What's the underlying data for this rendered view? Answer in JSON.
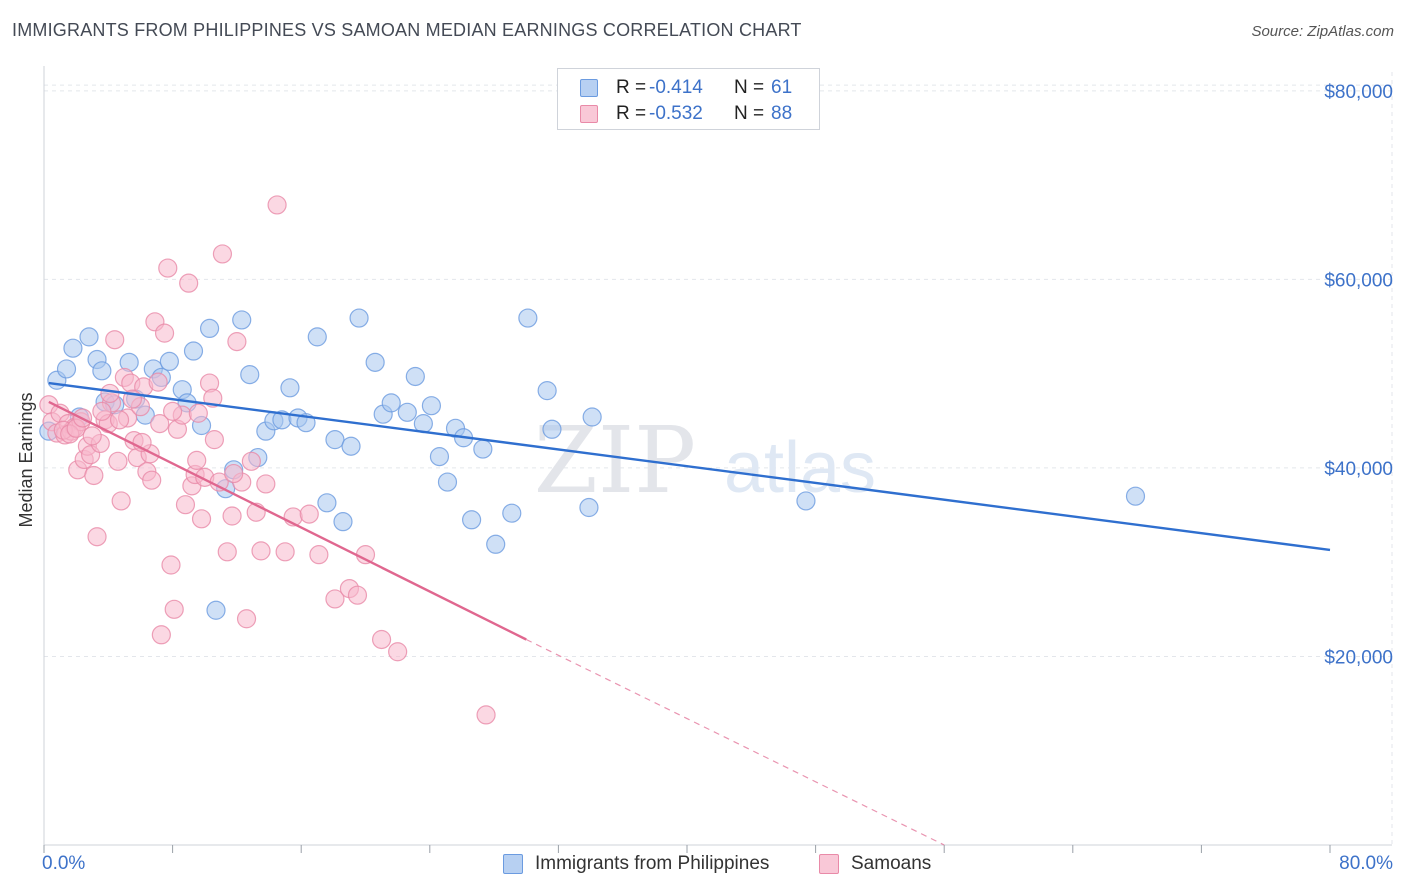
{
  "title": "IMMIGRANTS FROM PHILIPPINES VS SAMOAN MEDIAN EARNINGS CORRELATION CHART",
  "source": "Source: ZipAtlas.com",
  "watermark": {
    "part1": "ZIP",
    "part2": "atlas"
  },
  "legend": {
    "rows": [
      {
        "r_label": "R =",
        "r_value": "-0.414",
        "n_label": "N =",
        "n_value": "61"
      },
      {
        "r_label": "R =",
        "r_value": "-0.532",
        "n_label": "N =",
        "n_value": "88"
      }
    ]
  },
  "colors": {
    "blue_fill": "#a8c6ef",
    "blue_stroke": "#6b9be0",
    "blue_line": "#2f6fcf",
    "pink_fill": "#f7b8cc",
    "pink_stroke": "#e98aa8",
    "pink_line": "#e0678f",
    "axis_text": "#3d72c9",
    "grid": "#e3e6eb"
  },
  "chart_data": {
    "type": "scatter",
    "title": "IMMIGRANTS FROM PHILIPPINES VS SAMOAN MEDIAN EARNINGS CORRELATION CHART",
    "xlabel": "",
    "ylabel": "Median Earnings",
    "xlim": [
      0,
      80
    ],
    "ylim": [
      0,
      82000
    ],
    "x_tick_labels": [
      "0.0%",
      "80.0%"
    ],
    "y_ticks": [
      20000,
      40000,
      60000,
      80000
    ],
    "y_tick_labels": [
      "$20,000",
      "$40,000",
      "$60,000",
      "$80,000"
    ],
    "grid": true,
    "legend_position": "bottom",
    "series": [
      {
        "name": "Immigrants from Philippines",
        "color": "#a8c6ef",
        "trend": {
          "x": [
            0.3,
            80.0
          ],
          "y": [
            49000,
            31300
          ],
          "dashed_extension": false
        },
        "points": [
          [
            0.3,
            43900
          ],
          [
            0.8,
            49300
          ],
          [
            1.4,
            50500
          ],
          [
            1.8,
            52700
          ],
          [
            2.2,
            45400
          ],
          [
            2.8,
            53900
          ],
          [
            3.3,
            51500
          ],
          [
            3.6,
            50300
          ],
          [
            3.8,
            47000
          ],
          [
            4.4,
            46700
          ],
          [
            5.3,
            51200
          ],
          [
            5.7,
            47300
          ],
          [
            6.3,
            45600
          ],
          [
            6.8,
            50500
          ],
          [
            7.3,
            49600
          ],
          [
            7.8,
            51300
          ],
          [
            8.6,
            48300
          ],
          [
            8.9,
            46900
          ],
          [
            9.3,
            52400
          ],
          [
            9.8,
            44500
          ],
          [
            10.3,
            54800
          ],
          [
            10.7,
            24900
          ],
          [
            11.3,
            37800
          ],
          [
            11.8,
            39800
          ],
          [
            12.3,
            55700
          ],
          [
            12.8,
            49900
          ],
          [
            13.3,
            41100
          ],
          [
            13.8,
            43900
          ],
          [
            14.3,
            45000
          ],
          [
            14.8,
            45100
          ],
          [
            15.3,
            48500
          ],
          [
            15.8,
            45300
          ],
          [
            16.3,
            44800
          ],
          [
            17.0,
            53900
          ],
          [
            17.6,
            36300
          ],
          [
            18.1,
            43000
          ],
          [
            18.6,
            34300
          ],
          [
            19.1,
            42300
          ],
          [
            19.6,
            55900
          ],
          [
            20.6,
            51200
          ],
          [
            21.1,
            45700
          ],
          [
            21.6,
            46900
          ],
          [
            22.6,
            45900
          ],
          [
            23.1,
            49700
          ],
          [
            23.6,
            44700
          ],
          [
            24.1,
            46600
          ],
          [
            24.6,
            41200
          ],
          [
            25.1,
            38500
          ],
          [
            25.6,
            44200
          ],
          [
            26.1,
            43200
          ],
          [
            26.6,
            34500
          ],
          [
            27.3,
            42000
          ],
          [
            28.1,
            31900
          ],
          [
            29.1,
            35200
          ],
          [
            30.1,
            55900
          ],
          [
            31.3,
            48200
          ],
          [
            31.6,
            44100
          ],
          [
            33.9,
            35800
          ],
          [
            34.1,
            45400
          ],
          [
            47.4,
            36500
          ],
          [
            67.9,
            37000
          ]
        ]
      },
      {
        "name": "Samoans",
        "color": "#f7b8cc",
        "trend": {
          "x": [
            0.3,
            30.0
          ],
          "y": [
            47000,
            21800
          ],
          "dashed_extension": true,
          "dashed_to": [
            56.0,
            0
          ]
        },
        "points": [
          [
            0.3,
            46700
          ],
          [
            0.5,
            44900
          ],
          [
            0.8,
            43700
          ],
          [
            1.0,
            45800
          ],
          [
            1.3,
            43500
          ],
          [
            1.5,
            44700
          ],
          [
            1.7,
            43900
          ],
          [
            1.9,
            44300
          ],
          [
            2.1,
            39800
          ],
          [
            2.3,
            44900
          ],
          [
            2.5,
            40900
          ],
          [
            2.7,
            42300
          ],
          [
            2.9,
            41400
          ],
          [
            3.1,
            39200
          ],
          [
            3.3,
            32700
          ],
          [
            3.5,
            42600
          ],
          [
            3.8,
            45100
          ],
          [
            4.0,
            44700
          ],
          [
            4.2,
            46900
          ],
          [
            4.4,
            53600
          ],
          [
            4.6,
            40700
          ],
          [
            4.8,
            36500
          ],
          [
            5.0,
            49600
          ],
          [
            5.2,
            45300
          ],
          [
            5.4,
            49000
          ],
          [
            5.6,
            42900
          ],
          [
            5.8,
            41100
          ],
          [
            6.0,
            46500
          ],
          [
            6.2,
            48600
          ],
          [
            6.4,
            39600
          ],
          [
            6.6,
            41500
          ],
          [
            6.9,
            55500
          ],
          [
            7.1,
            49100
          ],
          [
            7.3,
            22300
          ],
          [
            7.5,
            54300
          ],
          [
            7.7,
            61200
          ],
          [
            7.9,
            29700
          ],
          [
            8.1,
            25000
          ],
          [
            8.3,
            44100
          ],
          [
            8.6,
            45600
          ],
          [
            8.8,
            36100
          ],
          [
            9.0,
            59600
          ],
          [
            9.2,
            38100
          ],
          [
            9.4,
            39300
          ],
          [
            9.6,
            45800
          ],
          [
            9.8,
            34600
          ],
          [
            10.0,
            39000
          ],
          [
            10.3,
            49000
          ],
          [
            10.6,
            43000
          ],
          [
            10.9,
            38500
          ],
          [
            11.1,
            62700
          ],
          [
            11.4,
            31100
          ],
          [
            11.7,
            34900
          ],
          [
            12.0,
            53400
          ],
          [
            12.3,
            38500
          ],
          [
            12.6,
            24000
          ],
          [
            12.9,
            40700
          ],
          [
            13.2,
            35300
          ],
          [
            13.5,
            31200
          ],
          [
            14.5,
            67900
          ],
          [
            15.0,
            31100
          ],
          [
            15.5,
            34800
          ],
          [
            17.1,
            30800
          ],
          [
            18.1,
            26100
          ],
          [
            19.0,
            27200
          ],
          [
            19.5,
            26500
          ],
          [
            20.0,
            30800
          ],
          [
            21.0,
            21800
          ],
          [
            22.0,
            20500
          ],
          [
            27.5,
            13800
          ],
          [
            1.2,
            44000
          ],
          [
            1.6,
            43600
          ],
          [
            2.0,
            44200
          ],
          [
            2.4,
            45300
          ],
          [
            3.0,
            43400
          ],
          [
            3.6,
            46000
          ],
          [
            4.1,
            47900
          ],
          [
            4.7,
            45100
          ],
          [
            5.5,
            47300
          ],
          [
            6.1,
            42700
          ],
          [
            6.7,
            38700
          ],
          [
            7.2,
            44700
          ],
          [
            8.0,
            46000
          ],
          [
            9.5,
            40800
          ],
          [
            10.5,
            47400
          ],
          [
            11.8,
            39400
          ],
          [
            13.8,
            38300
          ],
          [
            16.5,
            35100
          ]
        ]
      }
    ]
  },
  "bottom_legend": [
    {
      "label": "Immigrants from Philippines"
    },
    {
      "label": "Samoans"
    }
  ]
}
